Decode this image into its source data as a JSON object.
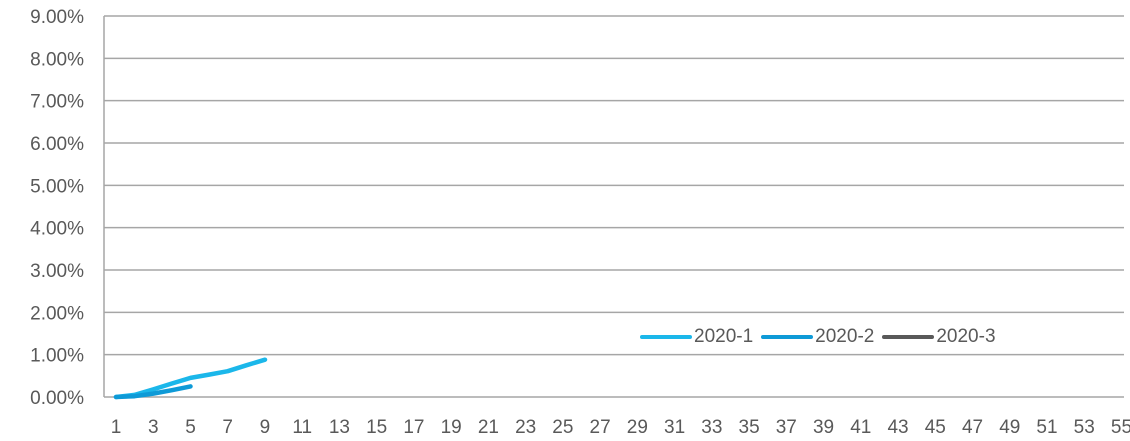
{
  "chart_data": {
    "type": "line",
    "title": "",
    "xlabel": "",
    "ylabel": "",
    "x_ticks": [
      1,
      3,
      5,
      7,
      9,
      11,
      13,
      15,
      17,
      19,
      21,
      23,
      25,
      27,
      29,
      31,
      33,
      35,
      37,
      39,
      41,
      43,
      45,
      47,
      49,
      51,
      53,
      55
    ],
    "xlim": [
      1,
      56
    ],
    "ylim": [
      0,
      0.09
    ],
    "y_ticks": [
      0,
      0.01,
      0.02,
      0.03,
      0.04,
      0.05,
      0.06,
      0.07,
      0.08,
      0.09
    ],
    "y_tick_labels": [
      "0.00%",
      "1.00%",
      "2.00%",
      "3.00%",
      "4.00%",
      "5.00%",
      "6.00%",
      "7.00%",
      "8.00%",
      "9.00%"
    ],
    "grid": true,
    "legend_position": "bottom-right",
    "series": [
      {
        "name": "2020-1",
        "color": "#1BB7EA",
        "x": [
          1,
          2,
          3,
          4,
          5,
          6,
          7,
          8,
          9
        ],
        "y": [
          0.0,
          0.0005,
          0.0018,
          0.0032,
          0.0045,
          0.0053,
          0.0061,
          0.0075,
          0.0088
        ]
      },
      {
        "name": "2020-2",
        "color": "#0E9AD7",
        "x": [
          1,
          2,
          3,
          4,
          5
        ],
        "y": [
          0.0,
          0.0002,
          0.0008,
          0.0016,
          0.0025
        ]
      },
      {
        "name": "2020-3",
        "color": "#595959",
        "x": [],
        "y": []
      }
    ]
  }
}
